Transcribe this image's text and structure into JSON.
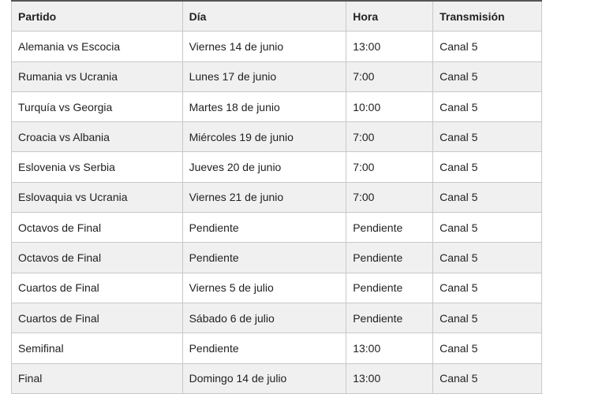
{
  "table": {
    "headers": [
      "Partido",
      "Día",
      "Hora",
      "Transmisión"
    ],
    "rows": [
      [
        "Alemania vs Escocia",
        "Viernes 14 de junio",
        "13:00",
        "Canal 5"
      ],
      [
        "Rumania vs Ucrania",
        "Lunes 17 de junio",
        "7:00",
        "Canal 5"
      ],
      [
        "Turquía vs Georgia",
        "Martes 18 de junio",
        "10:00",
        "Canal 5"
      ],
      [
        "Croacia vs Albania",
        "Miércoles 19 de junio",
        "7:00",
        "Canal 5"
      ],
      [
        "Eslovenia vs Serbia",
        "Jueves 20 de junio",
        "7:00",
        "Canal 5"
      ],
      [
        "Eslovaquia vs Ucrania",
        "Viernes 21 de junio",
        "7:00",
        "Canal 5"
      ],
      [
        "Octavos de Final",
        "Pendiente",
        "Pendiente",
        "Canal 5"
      ],
      [
        "Octavos de Final",
        "Pendiente",
        "Pendiente",
        "Canal 5"
      ],
      [
        "Cuartos de Final",
        "Viernes 5 de julio",
        "Pendiente",
        "Canal 5"
      ],
      [
        "Cuartos de Final",
        "Sábado 6 de julio",
        "Pendiente",
        "Canal 5"
      ],
      [
        "Semifinal",
        "Pendiente",
        "13:00",
        "Canal 5"
      ],
      [
        "Final",
        "Domingo 14 de julio",
        "13:00",
        "Canal 5"
      ]
    ]
  }
}
